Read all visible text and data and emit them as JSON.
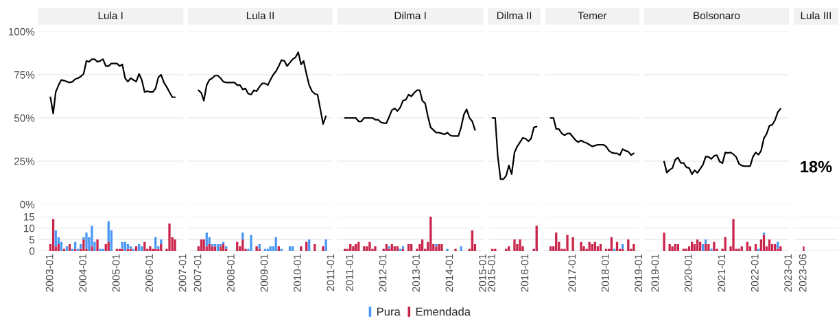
{
  "chart_data": [
    {
      "type": "line",
      "title": "Lula I",
      "xlim": [
        "2002-08-15",
        "2007-01-01"
      ],
      "ylim": [
        0,
        100
      ],
      "yticks": [
        {
          "value": 0,
          "label": "0%"
        },
        {
          "value": 25,
          "label": "25%"
        },
        {
          "value": 50,
          "label": "50%"
        },
        {
          "value": 75,
          "label": "75%"
        },
        {
          "value": 100,
          "label": "100%"
        }
      ],
      "grid": "y",
      "tick_labels": "y",
      "x": [
        "2003-01",
        "2003-02",
        "2003-03",
        "2003-04",
        "2003-05",
        "2003-06",
        "2003-07",
        "2003-08",
        "2003-09",
        "2003-10",
        "2003-11",
        "2003-12",
        "2004-01",
        "2004-02",
        "2004-03",
        "2004-04",
        "2004-05",
        "2004-06",
        "2004-07",
        "2004-08",
        "2004-09",
        "2004-10",
        "2004-11",
        "2004-12",
        "2005-01",
        "2005-02",
        "2005-03",
        "2005-04",
        "2005-05",
        "2005-06",
        "2005-07",
        "2005-08",
        "2005-09",
        "2005-10",
        "2005-11",
        "2005-12",
        "2006-01",
        "2006-02",
        "2006-03",
        "2006-04",
        "2006-05",
        "2006-06",
        "2006-07",
        "2006-08",
        "2006-09",
        "2006-10"
      ],
      "series": [
        {
          "color": "#000000",
          "values": [
            62,
            52.6,
            65,
            69,
            72,
            71.6,
            71,
            70.5,
            71,
            72.5,
            73,
            74,
            75.5,
            83,
            82.5,
            84,
            84,
            82.5,
            83,
            84,
            80,
            80,
            81.5,
            81.5,
            81.5,
            80,
            81,
            73,
            71,
            73,
            72,
            71,
            75.5,
            72,
            65,
            65.5,
            65,
            65,
            67,
            73.5,
            75,
            70.5,
            68,
            65,
            62,
            62
          ]
        }
      ]
    },
    {
      "type": "line",
      "title": "Lula II",
      "xlim": [
        "2006-09-10",
        "2011-01-12"
      ],
      "ylim": [
        0,
        100
      ],
      "yticks": [
        0,
        25,
        50,
        75,
        100
      ],
      "grid": "y",
      "tick_labels": false,
      "x": [
        "2007-01",
        "2007-02",
        "2007-03",
        "2007-04",
        "2007-05",
        "2007-06",
        "2007-07",
        "2007-08",
        "2007-09",
        "2007-10",
        "2007-11",
        "2007-12",
        "2008-01",
        "2008-02",
        "2008-03",
        "2008-04",
        "2008-05",
        "2008-06",
        "2008-07",
        "2008-08",
        "2008-09",
        "2008-10",
        "2008-11",
        "2008-12",
        "2009-01",
        "2009-02",
        "2009-03",
        "2009-04",
        "2009-05",
        "2009-06",
        "2009-07",
        "2009-08",
        "2009-09",
        "2009-10",
        "2009-11",
        "2009-12",
        "2010-01",
        "2010-02",
        "2010-03",
        "2010-04",
        "2010-05",
        "2010-06",
        "2010-07",
        "2010-08",
        "2010-09",
        "2010-10",
        "2010-11"
      ],
      "series": [
        {
          "color": "#000000",
          "values": [
            66,
            64.5,
            60,
            69,
            72,
            73,
            74.5,
            74.5,
            73,
            71,
            70.5,
            70.5,
            70.5,
            70.5,
            69,
            69,
            66.5,
            67,
            64,
            63.5,
            66,
            65.5,
            68,
            70,
            70,
            69,
            72,
            75,
            77,
            80,
            83.5,
            83,
            80,
            82,
            84,
            85,
            88,
            81,
            83,
            75.5,
            69,
            65.5,
            64,
            63.5,
            55,
            46.5,
            51
          ]
        }
      ]
    },
    {
      "type": "line",
      "title": "Dilma I",
      "xlim": [
        "2010-08-10",
        "2015-01-01"
      ],
      "ylim": [
        0,
        100
      ],
      "yticks": [
        0,
        25,
        50,
        75,
        100
      ],
      "grid": "y",
      "tick_labels": false,
      "x": [
        "2010-11",
        "2010-12",
        "2011-01",
        "2011-02",
        "2011-03",
        "2011-04",
        "2011-05",
        "2011-06",
        "2011-07",
        "2011-08",
        "2011-09",
        "2011-10",
        "2011-11",
        "2011-12",
        "2012-01",
        "2012-02",
        "2012-03",
        "2012-04",
        "2012-05",
        "2012-06",
        "2012-07",
        "2012-08",
        "2012-09",
        "2012-10",
        "2012-11",
        "2012-12",
        "2013-01",
        "2013-02",
        "2013-03",
        "2013-04",
        "2013-05",
        "2013-06",
        "2013-07",
        "2013-08",
        "2013-09",
        "2013-10",
        "2013-11",
        "2013-12",
        "2014-01",
        "2014-02",
        "2014-03",
        "2014-04",
        "2014-05",
        "2014-06",
        "2014-07",
        "2014-08",
        "2014-09",
        "2014-10"
      ],
      "series": [
        {
          "color": "#000000",
          "values": [
            50,
            50,
            50,
            50,
            50,
            48,
            48,
            50,
            50,
            50,
            50,
            49,
            49,
            47.5,
            47,
            47,
            50.5,
            54.5,
            55.5,
            54,
            56,
            60,
            60.5,
            63.5,
            62.5,
            64.5,
            66,
            66,
            60,
            58.5,
            51,
            44.5,
            43,
            41.5,
            41.5,
            41,
            40.5,
            41.5,
            40,
            39.5,
            39.5,
            39.5,
            44.5,
            52,
            55,
            50,
            48,
            43
          ]
        }
      ]
    },
    {
      "type": "line",
      "title": "Dilma II",
      "xlim": [
        "2014-11-16",
        "2016-06-10"
      ],
      "ylim": [
        0,
        100
      ],
      "yticks": [
        0,
        25,
        50,
        75,
        100
      ],
      "grid": "y",
      "tick_labels": false,
      "x": [
        "2015-01",
        "2015-02",
        "2015-03",
        "2015-04",
        "2015-05",
        "2015-06",
        "2015-07",
        "2015-08",
        "2015-09",
        "2015-10",
        "2015-11",
        "2015-12",
        "2016-01",
        "2016-02",
        "2016-03",
        "2016-04",
        "2016-05"
      ],
      "series": [
        {
          "color": "#000000",
          "values": [
            50,
            50,
            28,
            14.5,
            14.5,
            16.5,
            22.5,
            17.5,
            30,
            33.5,
            36,
            38.5,
            38,
            36.5,
            38,
            44.5,
            45
          ]
        }
      ]
    },
    {
      "type": "line",
      "title": "Temer",
      "xlim": [
        "2016-03-01",
        "2019-01-01"
      ],
      "ylim": [
        0,
        100
      ],
      "yticks": [
        0,
        25,
        50,
        75,
        100
      ],
      "grid": "y",
      "tick_labels": false,
      "x": [
        "2016-05",
        "2016-06",
        "2016-07",
        "2016-08",
        "2016-09",
        "2016-10",
        "2016-11",
        "2016-12",
        "2017-01",
        "2017-02",
        "2017-03",
        "2017-04",
        "2017-05",
        "2017-06",
        "2017-07",
        "2017-08",
        "2017-09",
        "2017-10",
        "2017-11",
        "2017-12",
        "2018-01",
        "2018-02",
        "2018-03",
        "2018-04",
        "2018-05",
        "2018-06",
        "2018-07",
        "2018-08",
        "2018-09",
        "2018-10",
        "2018-11"
      ],
      "series": [
        {
          "color": "#000000",
          "values": [
            50,
            50,
            43.7,
            43.5,
            41,
            40,
            41,
            41,
            39,
            37,
            36,
            37,
            36,
            35.5,
            34.5,
            33.5,
            34,
            34.5,
            34.5,
            34.5,
            33.5,
            31,
            30,
            29.5,
            29.5,
            28.5,
            32,
            31,
            30.5,
            28.5,
            29.5
          ]
        }
      ]
    },
    {
      "type": "line",
      "title": "Bolsonaro",
      "xlim": [
        "2018-08-25",
        "2023-01-01"
      ],
      "ylim": [
        0,
        100
      ],
      "yticks": [
        0,
        25,
        50,
        75,
        100
      ],
      "grid": "y",
      "tick_labels": false,
      "x": [
        "2019-04",
        "2019-05",
        "2019-06",
        "2019-07",
        "2019-08",
        "2019-09",
        "2019-10",
        "2019-11",
        "2019-12",
        "2020-01",
        "2020-02",
        "2020-03",
        "2020-04",
        "2020-05",
        "2020-06",
        "2020-07",
        "2020-08",
        "2020-09",
        "2020-10",
        "2020-11",
        "2020-12",
        "2021-01",
        "2021-02",
        "2021-03",
        "2021-04",
        "2021-05",
        "2021-06",
        "2021-07",
        "2021-08",
        "2021-09",
        "2021-10",
        "2021-11",
        "2021-12",
        "2022-01",
        "2022-02",
        "2022-03",
        "2022-04",
        "2022-05",
        "2022-06",
        "2022-07",
        "2022-08",
        "2022-09",
        "2022-10"
      ],
      "series": [
        {
          "color": "#000000",
          "values": [
            24.7,
            18.4,
            20,
            21,
            25.8,
            27,
            24,
            24,
            21.5,
            21,
            17.4,
            19.7,
            18.2,
            20.5,
            23,
            27.6,
            27.4,
            26.3,
            28,
            28.4,
            24.7,
            23.8,
            30,
            29.7,
            30,
            29,
            27.4,
            23.5,
            22.4,
            22.1,
            22.1,
            22.1,
            27.4,
            30,
            28.7,
            31,
            38.2,
            40.8,
            45.5,
            46,
            48.7,
            53.4,
            55.3
          ]
        }
      ]
    },
    {
      "type": "other",
      "title": "Lula III",
      "annotations": [
        "18%"
      ]
    },
    {
      "type": "bar",
      "stacked": true,
      "xlim": [
        "2002-08-15",
        "2007-01-01"
      ],
      "ylim": [
        0,
        15
      ],
      "yticks": [
        0,
        5,
        10,
        15
      ],
      "xticks": [
        "2003-01",
        "2004-01",
        "2005-01",
        "2006-01",
        "2007-01"
      ],
      "grid": "y",
      "legend": "bottom",
      "x": [
        "2003-01",
        "2003-02",
        "2003-03",
        "2003-04",
        "2003-05",
        "2003-06",
        "2003-07",
        "2003-08",
        "2003-09",
        "2003-10",
        "2003-11",
        "2003-12",
        "2004-01",
        "2004-02",
        "2004-03",
        "2004-04",
        "2004-05",
        "2004-06",
        "2004-07",
        "2004-08",
        "2004-09",
        "2004-10",
        "2004-11",
        "2005-01",
        "2005-02",
        "2005-03",
        "2005-04",
        "2005-05",
        "2005-06",
        "2005-07",
        "2005-08",
        "2005-09",
        "2005-10",
        "2005-11",
        "2005-12",
        "2006-01",
        "2006-02",
        "2006-03",
        "2006-04",
        "2006-05",
        "2006-07",
        "2006-08",
        "2006-09",
        "2006-10"
      ],
      "series": [
        {
          "name": "Emendada",
          "color": "#c9264b",
          "values": [
            3,
            14,
            2,
            3,
            null,
            1,
            null,
            3,
            null,
            1,
            null,
            1,
            5,
            1,
            null,
            2,
            null,
            5,
            null,
            null,
            3,
            4,
            null,
            1,
            1,
            1,
            null,
            1,
            1,
            null,
            2,
            null,
            null,
            4,
            1,
            2,
            1,
            1,
            1,
            3,
            1,
            12,
            6,
            5
          ]
        },
        {
          "name": "Pura",
          "color": "#4a98f5",
          "values": [
            null,
            null,
            7,
            3,
            4,
            null,
            2,
            null,
            1,
            3,
            1,
            2,
            1,
            7,
            6,
            9,
            4,
            null,
            1,
            1,
            null,
            9,
            9,
            null,
            null,
            3,
            4,
            2,
            1,
            1,
            null,
            3,
            2,
            null,
            null,
            null,
            null,
            5,
            1,
            2,
            null,
            null,
            null,
            null
          ]
        }
      ]
    },
    {
      "type": "bar",
      "stacked": true,
      "xlim": [
        "2006-09-10",
        "2011-01-12"
      ],
      "ylim": [
        0,
        15
      ],
      "yticks": [
        0,
        5,
        10,
        15
      ],
      "xticks": [
        "2007-01",
        "2008-01",
        "2009-01",
        "2010-01",
        "2011-01"
      ],
      "grid": "y",
      "tick_labels": "x",
      "x": [
        "2007-01",
        "2007-02",
        "2007-03",
        "2007-04",
        "2007-05",
        "2007-06",
        "2007-07",
        "2007-08",
        "2007-09",
        "2007-10",
        "2007-11",
        "2008-03",
        "2008-04",
        "2008-05",
        "2008-06",
        "2008-07",
        "2008-08",
        "2008-10",
        "2008-11",
        "2009-01",
        "2009-02",
        "2009-03",
        "2009-04",
        "2009-05",
        "2009-06",
        "2009-07",
        "2009-10",
        "2009-11",
        "2010-02",
        "2010-04",
        "2010-05",
        "2010-07",
        "2010-10",
        "2010-11"
      ],
      "series": [
        {
          "color": "#c9264b",
          "values": [
            2,
            5,
            5,
            2,
            3,
            2,
            2,
            null,
            2,
            3,
            1,
            4,
            2,
            5,
            1,
            null,
            null,
            2,
            1,
            null,
            null,
            null,
            null,
            null,
            2,
            null,
            null,
            null,
            2,
            4,
            null,
            3,
            2,
            null
          ]
        },
        {
          "color": "#4a98f5",
          "values": [
            null,
            null,
            null,
            6,
            3,
            1,
            1,
            3,
            1,
            1,
            1,
            null,
            null,
            3,
            null,
            1,
            7,
            null,
            2,
            1,
            1,
            2,
            2,
            6,
            null,
            1,
            2,
            2,
            null,
            null,
            5,
            null,
            null,
            5
          ]
        }
      ]
    },
    {
      "type": "bar",
      "stacked": true,
      "xlim": [
        "2010-08-10",
        "2015-01-01"
      ],
      "ylim": [
        0,
        15
      ],
      "yticks": [
        0,
        5,
        10,
        15
      ],
      "xticks": [
        "2011-01",
        "2012-01",
        "2013-01",
        "2014-01",
        "2015-01"
      ],
      "grid": "y",
      "tick_labels": "x",
      "x": [
        "2010-11",
        "2010-12",
        "2011-01",
        "2011-02",
        "2011-03",
        "2011-04",
        "2011-06",
        "2011-07",
        "2011-08",
        "2011-09",
        "2011-10",
        "2012-01",
        "2012-02",
        "2012-03",
        "2012-04",
        "2012-05",
        "2012-06",
        "2012-07",
        "2012-08",
        "2012-10",
        "2012-11",
        "2013-01",
        "2013-02",
        "2013-03",
        "2013-04",
        "2013-05",
        "2013-06",
        "2013-07",
        "2013-08",
        "2013-09",
        "2013-10",
        "2013-12",
        "2014-03",
        "2014-05",
        "2014-08",
        "2014-09",
        "2014-10"
      ],
      "series": [
        {
          "color": "#c9264b",
          "values": [
            1,
            1,
            3,
            2,
            3,
            4,
            2,
            2,
            4,
            1,
            2,
            1,
            3,
            1,
            3,
            2,
            2,
            null,
            1,
            3,
            3,
            1,
            3,
            5,
            1,
            4,
            15,
            3,
            2,
            3,
            3,
            null,
            1,
            null,
            1,
            9,
            3
          ]
        },
        {
          "color": "#4a98f5",
          "values": [
            null,
            null,
            null,
            null,
            null,
            null,
            null,
            null,
            null,
            null,
            null,
            null,
            null,
            1,
            null,
            null,
            null,
            1,
            1,
            null,
            null,
            null,
            null,
            null,
            null,
            null,
            null,
            null,
            1,
            null,
            null,
            1,
            null,
            2,
            null,
            null,
            null
          ]
        }
      ]
    },
    {
      "type": "bar",
      "stacked": true,
      "xlim": [
        "2014-11-16",
        "2016-06-10"
      ],
      "ylim": [
        0,
        15
      ],
      "yticks": [
        0,
        5,
        10,
        15
      ],
      "xticks": [
        "2015-01",
        "2016-01"
      ],
      "grid": "y",
      "tick_labels": "x",
      "x": [
        "2015-01",
        "2015-02",
        "2015-06",
        "2015-07",
        "2015-09",
        "2015-10",
        "2015-11",
        "2015-12",
        "2016-04",
        "2016-05"
      ],
      "series": [
        {
          "color": "#c9264b",
          "values": [
            1,
            1,
            1,
            2,
            5,
            3,
            5,
            2,
            1,
            11
          ]
        }
      ]
    },
    {
      "type": "bar",
      "stacked": true,
      "xlim": [
        "2016-03-01",
        "2019-01-01"
      ],
      "ylim": [
        0,
        15
      ],
      "yticks": [
        0,
        5,
        10,
        15
      ],
      "xticks": [
        "2017-01",
        "2018-01",
        "2019-01"
      ],
      "grid": "y",
      "tick_labels": "x",
      "x": [
        "2016-05",
        "2016-06",
        "2016-07",
        "2016-08",
        "2016-09",
        "2016-10",
        "2016-11",
        "2017-01",
        "2017-04",
        "2017-05",
        "2017-06",
        "2017-07",
        "2017-08",
        "2017-09",
        "2017-10",
        "2017-11",
        "2018-01",
        "2018-02",
        "2018-03",
        "2018-04",
        "2018-05",
        "2018-06",
        "2018-07",
        "2018-09",
        "2018-10",
        "2018-11"
      ],
      "series": [
        {
          "color": "#c9264b",
          "values": [
            2,
            2,
            8,
            4,
            1,
            1,
            7,
            6,
            4,
            2,
            1,
            4,
            3,
            4,
            2,
            3,
            1,
            1,
            6,
            null,
            4,
            1,
            1,
            5,
            1,
            3
          ]
        },
        {
          "color": "#4a98f5",
          "values": [
            null,
            null,
            null,
            null,
            null,
            null,
            null,
            null,
            null,
            null,
            null,
            null,
            null,
            null,
            null,
            null,
            null,
            null,
            null,
            1,
            null,
            null,
            2,
            null,
            null,
            null
          ]
        }
      ]
    },
    {
      "type": "bar",
      "stacked": true,
      "xlim": [
        "2018-08-25",
        "2023-01-01"
      ],
      "ylim": [
        0,
        15
      ],
      "yticks": [
        0,
        5,
        10,
        15
      ],
      "xticks": [
        "2019-01",
        "2020-01",
        "2021-01",
        "2022-01",
        "2023-01"
      ],
      "grid": "y",
      "tick_labels": "x",
      "x": [
        "2019-04",
        "2019-06",
        "2019-07",
        "2019-08",
        "2019-09",
        "2019-11",
        "2019-12",
        "2020-01",
        "2020-02",
        "2020-03",
        "2020-04",
        "2020-05",
        "2020-06",
        "2020-07",
        "2020-08",
        "2020-09",
        "2020-10",
        "2020-11",
        "2021-01",
        "2021-02",
        "2021-04",
        "2021-05",
        "2021-06",
        "2021-07",
        "2021-08",
        "2021-10",
        "2021-11",
        "2022-01",
        "2022-02",
        "2022-03",
        "2022-04",
        "2022-05",
        "2022-06",
        "2022-07",
        "2022-08",
        "2022-09",
        "2022-10"
      ],
      "series": [
        {
          "color": "#c9264b",
          "values": [
            8,
            3,
            2,
            3,
            3,
            1,
            1,
            2,
            4,
            3,
            5,
            4,
            null,
            3,
            3,
            null,
            4,
            1,
            1,
            6,
            2,
            14,
            1,
            1,
            2,
            4,
            2,
            3,
            null,
            5,
            7,
            2,
            5,
            3,
            3,
            1,
            2
          ]
        },
        {
          "color": "#4a98f5",
          "values": [
            null,
            null,
            null,
            null,
            null,
            null,
            null,
            null,
            null,
            null,
            null,
            null,
            3,
            2,
            null,
            1,
            null,
            null,
            null,
            null,
            null,
            null,
            null,
            null,
            null,
            null,
            null,
            null,
            1,
            null,
            1,
            null,
            null,
            null,
            null,
            3,
            null
          ]
        }
      ]
    },
    {
      "type": "bar",
      "stacked": true,
      "ylim": [
        0,
        15
      ],
      "yticks": [
        0,
        5,
        10,
        15
      ],
      "categories": [
        "2023-06"
      ],
      "grid": "y",
      "tick_labels": "x",
      "series": [
        {
          "color": "#c9264b",
          "values": [
            2
          ]
        }
      ]
    }
  ]
}
